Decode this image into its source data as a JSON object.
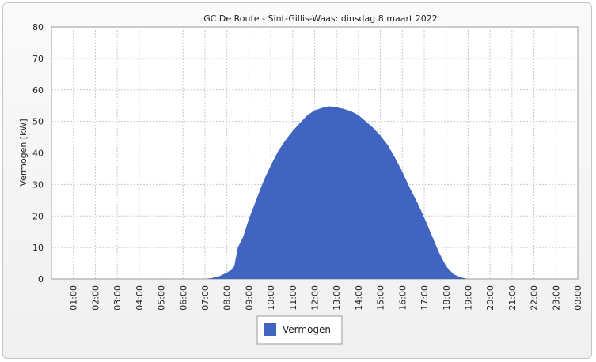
{
  "chart_data": {
    "type": "area",
    "title": "GC De Route - Sint-Gillis-Waas: dinsdag 8 maart 2022",
    "xlabel": "",
    "ylabel": "Vermogen [kW]",
    "ylim": [
      0,
      80
    ],
    "yticks": [
      0,
      10,
      20,
      30,
      40,
      50,
      60,
      70,
      80
    ],
    "xlim": [
      "00:00",
      "24:00"
    ],
    "xticks": [
      "01:00",
      "02:00",
      "03:00",
      "04:00",
      "05:00",
      "06:00",
      "07:00",
      "08:00",
      "09:00",
      "10:00",
      "11:00",
      "12:00",
      "13:00",
      "14:00",
      "15:00",
      "16:00",
      "17:00",
      "18:00",
      "19:00",
      "20:00",
      "21:00",
      "22:00",
      "23:00",
      "00:00"
    ],
    "grid": true,
    "legend_position": "bottom-center",
    "series": [
      {
        "name": "Vermogen",
        "color": "#4065c1",
        "x": [
          "00:00",
          "07:00",
          "07:20",
          "07:40",
          "08:00",
          "08:10",
          "08:20",
          "08:30",
          "08:45",
          "09:00",
          "09:20",
          "09:40",
          "10:00",
          "10:20",
          "10:40",
          "11:00",
          "11:20",
          "11:40",
          "12:00",
          "12:20",
          "12:40",
          "13:00",
          "13:20",
          "13:40",
          "14:00",
          "14:20",
          "14:40",
          "15:00",
          "15:20",
          "15:40",
          "16:00",
          "16:20",
          "16:40",
          "17:00",
          "17:20",
          "17:40",
          "18:00",
          "18:20",
          "18:40",
          "19:00",
          "19:30"
        ],
        "y": [
          0,
          0,
          0.3,
          0.9,
          2.0,
          2.8,
          4.0,
          10.0,
          13.5,
          19.0,
          25.0,
          31.0,
          36.0,
          40.5,
          44.0,
          47.0,
          49.5,
          52.0,
          53.5,
          54.3,
          54.8,
          54.5,
          54.0,
          53.2,
          52.0,
          50.0,
          48.0,
          45.5,
          42.5,
          38.5,
          34.0,
          29.0,
          24.5,
          19.5,
          14.0,
          8.5,
          4.0,
          1.5,
          0.5,
          0,
          0
        ]
      }
    ]
  }
}
